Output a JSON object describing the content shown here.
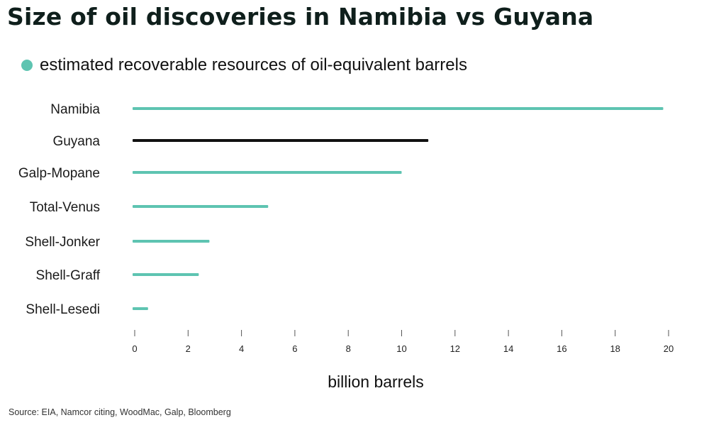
{
  "chart_data": {
    "type": "bar",
    "orientation": "horizontal",
    "title": "Size of oil discoveries in Namibia vs Guyana",
    "legend": [
      {
        "label": "estimated recoverable resources of oil-equivalent barrels",
        "color": "#5ec4b1"
      }
    ],
    "legend_position": "top-left",
    "categories": [
      "Namibia",
      "Guyana",
      "Galp-Mopane",
      "Total-Venus",
      "Shell-Jonker",
      "Shell-Graff",
      "Shell-Lesedi"
    ],
    "values": [
      19.8,
      11,
      10,
      5,
      2.8,
      2.4,
      0.5
    ],
    "bar_colors": [
      "#5ec4b1",
      "#111111",
      "#5ec4b1",
      "#5ec4b1",
      "#5ec4b1",
      "#5ec4b1",
      "#5ec4b1"
    ],
    "xlabel": "billion barrels",
    "ylabel": "",
    "xlim": [
      0,
      20
    ],
    "xticks": [
      "0",
      "2",
      "4",
      "6",
      "8",
      "10",
      "12",
      "14",
      "16",
      "18",
      "20"
    ],
    "grid": false,
    "source": "Source: EIA, Namcor citing, WoodMac, Galp, Bloomberg"
  }
}
